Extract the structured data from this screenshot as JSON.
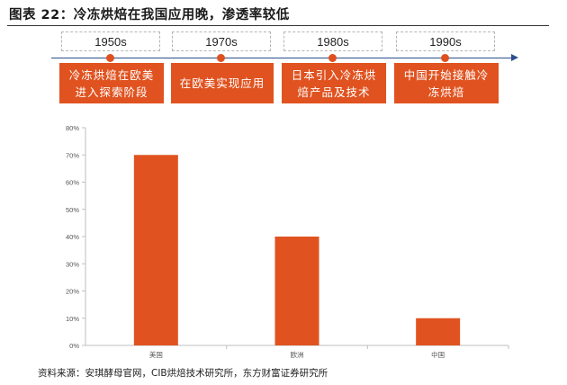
{
  "figure": {
    "title": "图表 22：冷冻烘焙在我国应用晚，渗透率较低",
    "source": "资料来源：安琪酵母官网，CIB烘焙技术研究所，东方财富证券研究所"
  },
  "timeline": {
    "decades": [
      "1950s",
      "1970s",
      "1980s",
      "1990s"
    ],
    "events": [
      "冷冻烘焙在欧美进入探索阶段",
      "在欧美实现应用",
      "日本引入冷冻烘焙产品及技术",
      "中国开始接触冷冻烘焙"
    ],
    "colors": {
      "accent": "#e05320",
      "axis": "#2b4f8c"
    }
  },
  "chart_data": {
    "type": "bar",
    "categories": [
      "美国",
      "欧洲",
      "中国"
    ],
    "values": [
      70,
      40,
      10
    ],
    "y_unit": "%",
    "ylim": [
      0,
      80
    ],
    "yticks": [
      0,
      10,
      20,
      30,
      40,
      50,
      60,
      70,
      80
    ],
    "title": "",
    "xlabel": "",
    "ylabel": "",
    "grid": false,
    "legend": "none",
    "bar_color": "#e05320"
  }
}
